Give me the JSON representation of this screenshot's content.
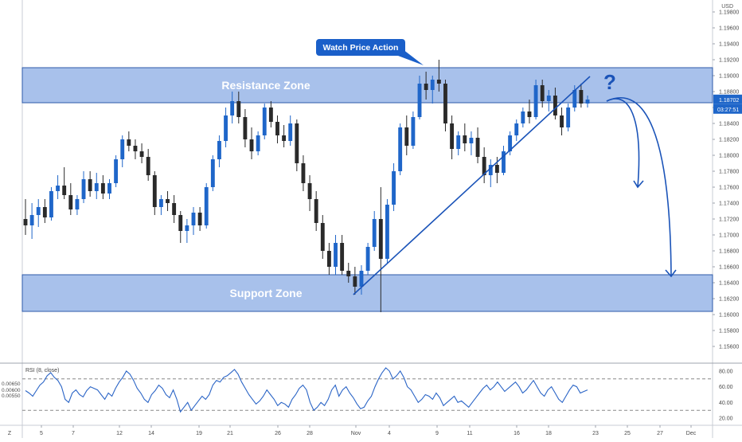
{
  "colors": {
    "candle_up": "#1f66c9",
    "candle_down": "#2a2a2a",
    "zone_fill": "#8fb0e6",
    "zone_edge": "#2e5aa8",
    "drawing": "#1a53b8",
    "callout_bg": "#1a5fc9",
    "rsi_line": "#2a64c6",
    "price_tag": "#1f66c9"
  },
  "chart_data": [
    {
      "type": "candlestick",
      "currency_label": "USD",
      "x_tick_labels": [
        "Z",
        "5",
        "7",
        "12",
        "14",
        "19",
        "21",
        "26",
        "28",
        "Nov",
        "4",
        "9",
        "11",
        "16",
        "18",
        "23",
        "25",
        "27",
        "Dec"
      ],
      "y_tick_labels": [
        "1.19800",
        "1.19600",
        "1.19400",
        "1.19200",
        "1.19000",
        "1.18800",
        "1.18600",
        "1.18400",
        "1.18200",
        "1.18000",
        "1.17800",
        "1.17600",
        "1.17400",
        "1.17200",
        "1.17000",
        "1.16800",
        "1.16600",
        "1.16400",
        "1.16200",
        "1.16000",
        "1.15800",
        "1.15600"
      ],
      "ylim": [
        1.1543,
        1.1995
      ],
      "last_price": "1.18702",
      "countdown": "03:27:51",
      "zones": [
        {
          "label": "Resistance Zone",
          "y_low": 1.1866,
          "y_high": 1.191
        },
        {
          "label": "Support Zone",
          "y_low": 1.1604,
          "y_high": 1.165
        }
      ],
      "annotation": "Watch Price Action",
      "question_mark": "?",
      "candles_ohlc": [
        [
          1.172,
          1.1745,
          1.17,
          1.1712
        ],
        [
          1.1712,
          1.174,
          1.1695,
          1.1725
        ],
        [
          1.1725,
          1.1745,
          1.171,
          1.1735
        ],
        [
          1.1735,
          1.1745,
          1.1715,
          1.1722
        ],
        [
          1.1722,
          1.176,
          1.1718,
          1.1755
        ],
        [
          1.1755,
          1.1775,
          1.1745,
          1.1762
        ],
        [
          1.1762,
          1.1785,
          1.1745,
          1.175
        ],
        [
          1.175,
          1.1765,
          1.1725,
          1.1732
        ],
        [
          1.1732,
          1.175,
          1.1725,
          1.1745
        ],
        [
          1.1745,
          1.178,
          1.174,
          1.177
        ],
        [
          1.177,
          1.178,
          1.1748,
          1.1755
        ],
        [
          1.1755,
          1.1778,
          1.1745,
          1.1765
        ],
        [
          1.1765,
          1.1775,
          1.1745,
          1.1752
        ],
        [
          1.1752,
          1.177,
          1.1745,
          1.1765
        ],
        [
          1.1765,
          1.18,
          1.176,
          1.1795
        ],
        [
          1.1795,
          1.1825,
          1.1785,
          1.182
        ],
        [
          1.182,
          1.183,
          1.1805,
          1.1812
        ],
        [
          1.1812,
          1.182,
          1.1795,
          1.1805
        ],
        [
          1.1805,
          1.1815,
          1.179,
          1.1798
        ],
        [
          1.1798,
          1.1808,
          1.1768,
          1.1775
        ],
        [
          1.1775,
          1.178,
          1.1725,
          1.1735
        ],
        [
          1.1735,
          1.175,
          1.1725,
          1.1745
        ],
        [
          1.1745,
          1.1755,
          1.173,
          1.174
        ],
        [
          1.174,
          1.175,
          1.1715,
          1.1725
        ],
        [
          1.1725,
          1.173,
          1.169,
          1.1705
        ],
        [
          1.1705,
          1.172,
          1.169,
          1.1712
        ],
        [
          1.1712,
          1.1735,
          1.17,
          1.1728
        ],
        [
          1.1728,
          1.1735,
          1.1705,
          1.1712
        ],
        [
          1.1712,
          1.1765,
          1.1708,
          1.176
        ],
        [
          1.176,
          1.18,
          1.1755,
          1.1795
        ],
        [
          1.1795,
          1.1825,
          1.1785,
          1.1818
        ],
        [
          1.1818,
          1.186,
          1.181,
          1.185
        ],
        [
          1.185,
          1.188,
          1.184,
          1.1868
        ],
        [
          1.1868,
          1.188,
          1.184,
          1.1848
        ],
        [
          1.1848,
          1.1858,
          1.181,
          1.182
        ],
        [
          1.182,
          1.1835,
          1.1795,
          1.1805
        ],
        [
          1.1805,
          1.183,
          1.18,
          1.1825
        ],
        [
          1.1825,
          1.1865,
          1.182,
          1.186
        ],
        [
          1.186,
          1.1868,
          1.1835,
          1.1842
        ],
        [
          1.1842,
          1.185,
          1.1815,
          1.1825
        ],
        [
          1.1825,
          1.1838,
          1.181,
          1.1818
        ],
        [
          1.1818,
          1.185,
          1.1812,
          1.184
        ],
        [
          1.184,
          1.1845,
          1.178,
          1.179
        ],
        [
          1.179,
          1.18,
          1.1755,
          1.1765
        ],
        [
          1.1765,
          1.1775,
          1.173,
          1.1745
        ],
        [
          1.1745,
          1.1755,
          1.1705,
          1.1715
        ],
        [
          1.1715,
          1.1725,
          1.167,
          1.168
        ],
        [
          1.168,
          1.169,
          1.165,
          1.166
        ],
        [
          1.166,
          1.17,
          1.165,
          1.169
        ],
        [
          1.169,
          1.17,
          1.165,
          1.1655
        ],
        [
          1.1655,
          1.1665,
          1.164,
          1.1648
        ],
        [
          1.1648,
          1.166,
          1.1625,
          1.1635
        ],
        [
          1.1635,
          1.1662,
          1.1625,
          1.1655
        ],
        [
          1.1655,
          1.169,
          1.165,
          1.1685
        ],
        [
          1.1685,
          1.173,
          1.168,
          1.172
        ],
        [
          1.172,
          1.176,
          1.1603,
          1.167
        ],
        [
          1.167,
          1.1745,
          1.1665,
          1.1738
        ],
        [
          1.1738,
          1.179,
          1.173,
          1.178
        ],
        [
          1.178,
          1.184,
          1.1775,
          1.1835
        ],
        [
          1.1835,
          1.185,
          1.18,
          1.1812
        ],
        [
          1.1812,
          1.1855,
          1.1808,
          1.1848
        ],
        [
          1.1848,
          1.19,
          1.1845,
          1.189
        ],
        [
          1.189,
          1.1905,
          1.187,
          1.1882
        ],
        [
          1.1882,
          1.19,
          1.1865,
          1.1895
        ],
        [
          1.1895,
          1.192,
          1.188,
          1.189
        ],
        [
          1.189,
          1.1895,
          1.183,
          1.184
        ],
        [
          1.184,
          1.185,
          1.1795,
          1.1808
        ],
        [
          1.1808,
          1.183,
          1.18,
          1.1825
        ],
        [
          1.1825,
          1.184,
          1.1805,
          1.1815
        ],
        [
          1.1815,
          1.183,
          1.18,
          1.1822
        ],
        [
          1.1822,
          1.1835,
          1.179,
          1.1798
        ],
        [
          1.1798,
          1.181,
          1.1765,
          1.1775
        ],
        [
          1.1775,
          1.1795,
          1.176,
          1.1788
        ],
        [
          1.1788,
          1.1798,
          1.1765,
          1.1778
        ],
        [
          1.1778,
          1.1812,
          1.1775,
          1.1805
        ],
        [
          1.1805,
          1.183,
          1.18,
          1.1825
        ],
        [
          1.1825,
          1.1845,
          1.1818,
          1.184
        ],
        [
          1.184,
          1.186,
          1.1835,
          1.1855
        ],
        [
          1.1855,
          1.187,
          1.184,
          1.1848
        ],
        [
          1.1848,
          1.1895,
          1.1845,
          1.1888
        ],
        [
          1.1888,
          1.1895,
          1.186,
          1.1868
        ],
        [
          1.1868,
          1.1882,
          1.1855,
          1.1875
        ],
        [
          1.1875,
          1.1885,
          1.1845,
          1.185
        ],
        [
          1.185,
          1.186,
          1.1825,
          1.1835
        ],
        [
          1.1835,
          1.1865,
          1.183,
          1.186
        ],
        [
          1.186,
          1.1888,
          1.1855,
          1.1882
        ],
        [
          1.1882,
          1.189,
          1.186,
          1.1865
        ],
        [
          1.1865,
          1.1875,
          1.186,
          1.187
        ]
      ]
    },
    {
      "type": "line",
      "title": "RSI (8, close)",
      "y_tick_labels": [
        "80.00",
        "60.00",
        "40.00",
        "20.00"
      ],
      "left_tick_labels": [
        "0.00650",
        "0.00600",
        "0.00550"
      ],
      "ylim": [
        15,
        88
      ],
      "levels": [
        70,
        30
      ],
      "values": [
        55,
        52,
        48,
        55,
        62,
        66,
        74,
        78,
        72,
        68,
        60,
        44,
        40,
        52,
        56,
        50,
        47,
        55,
        60,
        58,
        56,
        50,
        44,
        52,
        48,
        58,
        66,
        72,
        80,
        76,
        68,
        58,
        52,
        44,
        40,
        50,
        55,
        62,
        58,
        50,
        46,
        56,
        44,
        28,
        34,
        40,
        30,
        36,
        42,
        48,
        44,
        50,
        62,
        68,
        66,
        72,
        74,
        78,
        82,
        76,
        66,
        58,
        50,
        44,
        38,
        42,
        48,
        56,
        50,
        44,
        36,
        40,
        38,
        34,
        44,
        50,
        58,
        62,
        56,
        40,
        30,
        34,
        40,
        36,
        44,
        56,
        62,
        48,
        56,
        60,
        52,
        46,
        38,
        32,
        34,
        42,
        48,
        60,
        70,
        78,
        84,
        80,
        70,
        74,
        80,
        72,
        60,
        56,
        48,
        40,
        44,
        50,
        48,
        44,
        52,
        46,
        36,
        40,
        44,
        48,
        40,
        42,
        38,
        34,
        40,
        46,
        52,
        58,
        62,
        56,
        60,
        66,
        60,
        54,
        58,
        62,
        66,
        60,
        52,
        56,
        62,
        68,
        60,
        52,
        48,
        56,
        60,
        52,
        44,
        40,
        48,
        56,
        62,
        60,
        52,
        54,
        56
      ]
    }
  ]
}
